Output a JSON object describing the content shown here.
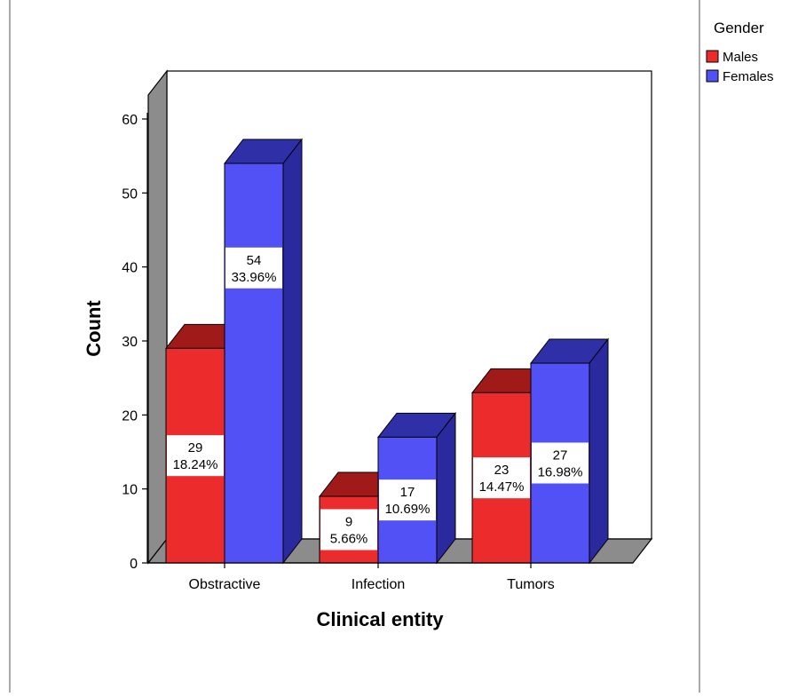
{
  "chart_data": {
    "type": "bar",
    "title": "",
    "xlabel": "Clinical entity",
    "ylabel": "Count",
    "categories": [
      "Obstractive",
      "Infection",
      "Tumors"
    ],
    "series": [
      {
        "name": "Males",
        "values": [
          29,
          9,
          23
        ],
        "percents": [
          "18.24%",
          "5.66%",
          "14.47%"
        ],
        "color": "#ec2c2c"
      },
      {
        "name": "Females",
        "values": [
          54,
          17,
          27
        ],
        "percents": [
          "33.96%",
          "10.69%",
          "16.98%"
        ],
        "color": "#5151f6"
      }
    ],
    "ylim": [
      0,
      60
    ],
    "yticks": [
      0,
      10,
      20,
      30,
      40,
      50,
      60
    ],
    "legend_title": "Gender",
    "legend_position": "top-right",
    "grid": false,
    "three_d": true
  },
  "colors": {
    "males_front": "#ec2c2c",
    "males_top": "#a11a1a",
    "females_front": "#5151f6",
    "females_top": "#2f2fa8",
    "females_side": "#2a2a9e",
    "back_wall": "#ffffff",
    "side_wall": "#8c8c8c",
    "floor": "#8c8c8c"
  }
}
